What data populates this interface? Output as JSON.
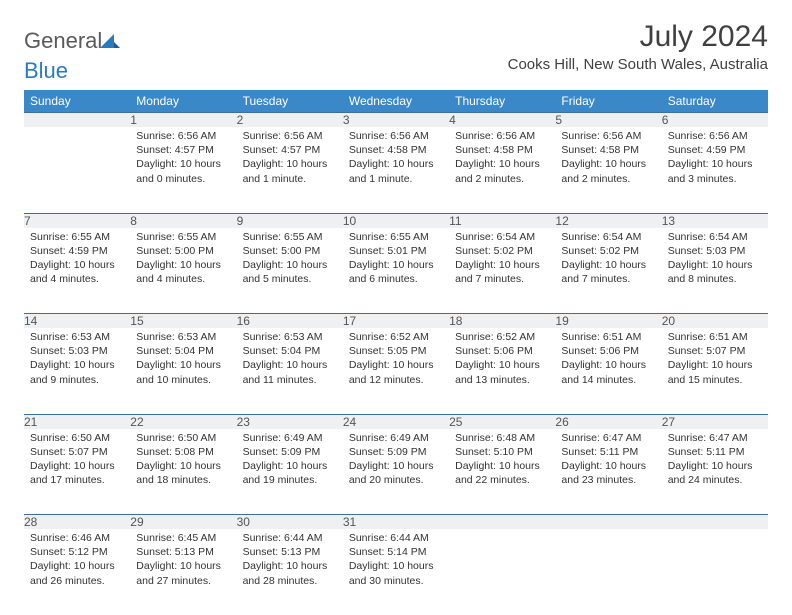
{
  "brand": {
    "name1": "General",
    "name2": "Blue"
  },
  "title": "July 2024",
  "location": "Cooks Hill, New South Wales, Australia",
  "colors": {
    "header_bg": "#3b88c8",
    "header_text": "#ffffff",
    "daynum_bg": "#eef0f1",
    "border": "#3b6fa0",
    "text": "#333333",
    "logo_gray": "#5a5a5a",
    "logo_blue": "#2a7ac0"
  },
  "weekdays": [
    "Sunday",
    "Monday",
    "Tuesday",
    "Wednesday",
    "Thursday",
    "Friday",
    "Saturday"
  ],
  "layout": {
    "cols": 7,
    "rows": 5,
    "cell_font_size": 10.5
  },
  "weeks": [
    [
      null,
      {
        "n": "1",
        "sr": "Sunrise: 6:56 AM",
        "ss": "Sunset: 4:57 PM",
        "dl": "Daylight: 10 hours and 0 minutes."
      },
      {
        "n": "2",
        "sr": "Sunrise: 6:56 AM",
        "ss": "Sunset: 4:57 PM",
        "dl": "Daylight: 10 hours and 1 minute."
      },
      {
        "n": "3",
        "sr": "Sunrise: 6:56 AM",
        "ss": "Sunset: 4:58 PM",
        "dl": "Daylight: 10 hours and 1 minute."
      },
      {
        "n": "4",
        "sr": "Sunrise: 6:56 AM",
        "ss": "Sunset: 4:58 PM",
        "dl": "Daylight: 10 hours and 2 minutes."
      },
      {
        "n": "5",
        "sr": "Sunrise: 6:56 AM",
        "ss": "Sunset: 4:58 PM",
        "dl": "Daylight: 10 hours and 2 minutes."
      },
      {
        "n": "6",
        "sr": "Sunrise: 6:56 AM",
        "ss": "Sunset: 4:59 PM",
        "dl": "Daylight: 10 hours and 3 minutes."
      }
    ],
    [
      {
        "n": "7",
        "sr": "Sunrise: 6:55 AM",
        "ss": "Sunset: 4:59 PM",
        "dl": "Daylight: 10 hours and 4 minutes."
      },
      {
        "n": "8",
        "sr": "Sunrise: 6:55 AM",
        "ss": "Sunset: 5:00 PM",
        "dl": "Daylight: 10 hours and 4 minutes."
      },
      {
        "n": "9",
        "sr": "Sunrise: 6:55 AM",
        "ss": "Sunset: 5:00 PM",
        "dl": "Daylight: 10 hours and 5 minutes."
      },
      {
        "n": "10",
        "sr": "Sunrise: 6:55 AM",
        "ss": "Sunset: 5:01 PM",
        "dl": "Daylight: 10 hours and 6 minutes."
      },
      {
        "n": "11",
        "sr": "Sunrise: 6:54 AM",
        "ss": "Sunset: 5:02 PM",
        "dl": "Daylight: 10 hours and 7 minutes."
      },
      {
        "n": "12",
        "sr": "Sunrise: 6:54 AM",
        "ss": "Sunset: 5:02 PM",
        "dl": "Daylight: 10 hours and 7 minutes."
      },
      {
        "n": "13",
        "sr": "Sunrise: 6:54 AM",
        "ss": "Sunset: 5:03 PM",
        "dl": "Daylight: 10 hours and 8 minutes."
      }
    ],
    [
      {
        "n": "14",
        "sr": "Sunrise: 6:53 AM",
        "ss": "Sunset: 5:03 PM",
        "dl": "Daylight: 10 hours and 9 minutes."
      },
      {
        "n": "15",
        "sr": "Sunrise: 6:53 AM",
        "ss": "Sunset: 5:04 PM",
        "dl": "Daylight: 10 hours and 10 minutes."
      },
      {
        "n": "16",
        "sr": "Sunrise: 6:53 AM",
        "ss": "Sunset: 5:04 PM",
        "dl": "Daylight: 10 hours and 11 minutes."
      },
      {
        "n": "17",
        "sr": "Sunrise: 6:52 AM",
        "ss": "Sunset: 5:05 PM",
        "dl": "Daylight: 10 hours and 12 minutes."
      },
      {
        "n": "18",
        "sr": "Sunrise: 6:52 AM",
        "ss": "Sunset: 5:06 PM",
        "dl": "Daylight: 10 hours and 13 minutes."
      },
      {
        "n": "19",
        "sr": "Sunrise: 6:51 AM",
        "ss": "Sunset: 5:06 PM",
        "dl": "Daylight: 10 hours and 14 minutes."
      },
      {
        "n": "20",
        "sr": "Sunrise: 6:51 AM",
        "ss": "Sunset: 5:07 PM",
        "dl": "Daylight: 10 hours and 15 minutes."
      }
    ],
    [
      {
        "n": "21",
        "sr": "Sunrise: 6:50 AM",
        "ss": "Sunset: 5:07 PM",
        "dl": "Daylight: 10 hours and 17 minutes."
      },
      {
        "n": "22",
        "sr": "Sunrise: 6:50 AM",
        "ss": "Sunset: 5:08 PM",
        "dl": "Daylight: 10 hours and 18 minutes."
      },
      {
        "n": "23",
        "sr": "Sunrise: 6:49 AM",
        "ss": "Sunset: 5:09 PM",
        "dl": "Daylight: 10 hours and 19 minutes."
      },
      {
        "n": "24",
        "sr": "Sunrise: 6:49 AM",
        "ss": "Sunset: 5:09 PM",
        "dl": "Daylight: 10 hours and 20 minutes."
      },
      {
        "n": "25",
        "sr": "Sunrise: 6:48 AM",
        "ss": "Sunset: 5:10 PM",
        "dl": "Daylight: 10 hours and 22 minutes."
      },
      {
        "n": "26",
        "sr": "Sunrise: 6:47 AM",
        "ss": "Sunset: 5:11 PM",
        "dl": "Daylight: 10 hours and 23 minutes."
      },
      {
        "n": "27",
        "sr": "Sunrise: 6:47 AM",
        "ss": "Sunset: 5:11 PM",
        "dl": "Daylight: 10 hours and 24 minutes."
      }
    ],
    [
      {
        "n": "28",
        "sr": "Sunrise: 6:46 AM",
        "ss": "Sunset: 5:12 PM",
        "dl": "Daylight: 10 hours and 26 minutes."
      },
      {
        "n": "29",
        "sr": "Sunrise: 6:45 AM",
        "ss": "Sunset: 5:13 PM",
        "dl": "Daylight: 10 hours and 27 minutes."
      },
      {
        "n": "30",
        "sr": "Sunrise: 6:44 AM",
        "ss": "Sunset: 5:13 PM",
        "dl": "Daylight: 10 hours and 28 minutes."
      },
      {
        "n": "31",
        "sr": "Sunrise: 6:44 AM",
        "ss": "Sunset: 5:14 PM",
        "dl": "Daylight: 10 hours and 30 minutes."
      },
      null,
      null,
      null
    ]
  ]
}
